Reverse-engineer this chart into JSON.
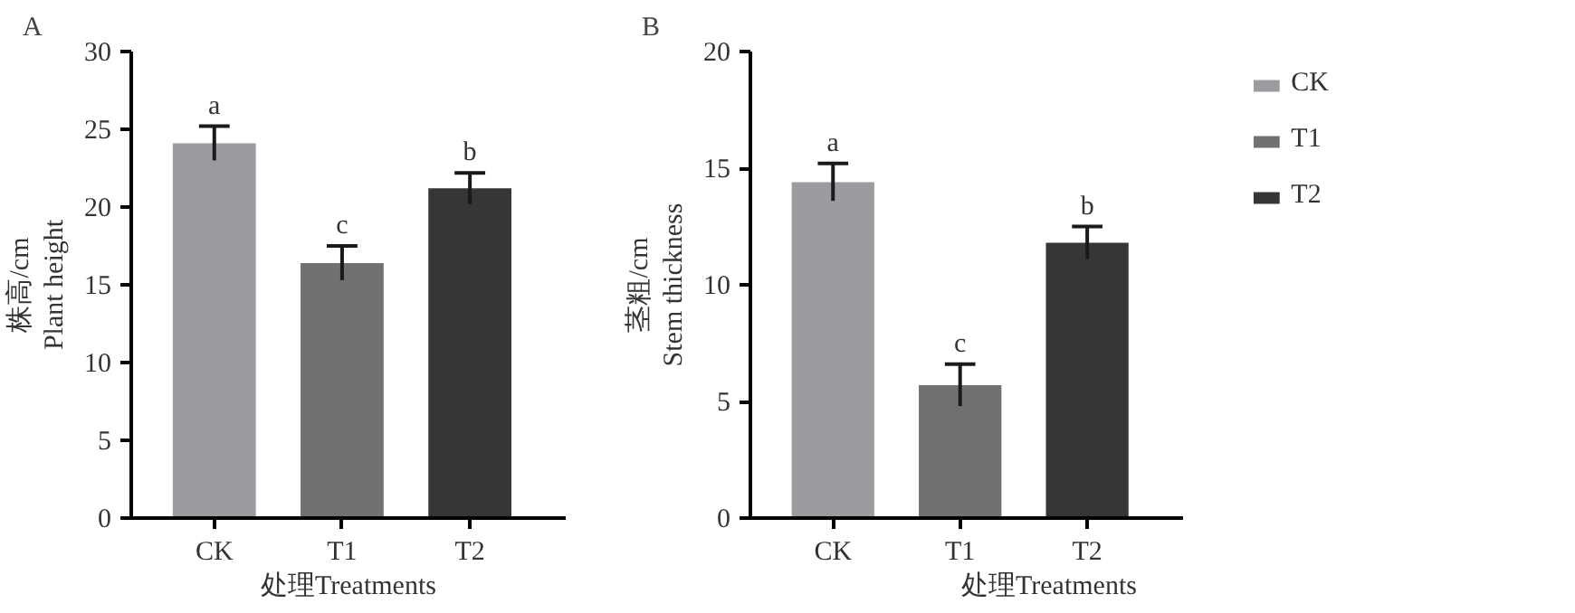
{
  "chart_data": [
    {
      "type": "bar",
      "title": "A",
      "xlabel": "处理Treatments",
      "ylabel": "株高/cm\nPlant height",
      "categories": [
        "CK",
        "T1",
        "T2"
      ],
      "values": [
        24.1,
        16.4,
        21.2
      ],
      "errors": [
        1.1,
        1.1,
        1.0
      ],
      "colors": [
        "#9a9ca0",
        "#717173",
        "#363537"
      ],
      "ylim": [
        0,
        30
      ],
      "yticks": [
        0,
        5,
        10,
        15,
        20,
        25,
        30
      ],
      "grid": false,
      "legend": false,
      "annotations": [
        {
          "text": "a",
          "x": "CK",
          "y": 25.2
        },
        {
          "text": "c",
          "x": "T1",
          "y": 17.5
        },
        {
          "text": "b",
          "x": "T2",
          "y": 22.2
        }
      ]
    },
    {
      "type": "bar",
      "title": "B",
      "xlabel": "处理Treatments",
      "ylabel": "茎粗/cm\nStem thickness",
      "categories": [
        "CK",
        "T1",
        "T2"
      ],
      "series": [
        {
          "name": "CK",
          "color": "#9a9ca0",
          "values": [
            14.4,
            null,
            null
          ],
          "errors": [
            0.8,
            null,
            null
          ]
        },
        {
          "name": "T1",
          "color": "#717173",
          "values": [
            null,
            5.7,
            null
          ],
          "errors": [
            null,
            0.9,
            null
          ]
        },
        {
          "name": "T2",
          "color": "#363537",
          "values": [
            null,
            null,
            11.8
          ],
          "errors": [
            null,
            null,
            0.7
          ]
        }
      ],
      "ylim": [
        0,
        20
      ],
      "yticks": [
        0,
        5,
        10,
        15,
        20
      ],
      "grid": false,
      "legend": "right",
      "annotations": [
        {
          "text": "a",
          "x": "CK",
          "y": 15.2
        },
        {
          "text": "c",
          "x": "T1",
          "y": 6.6
        },
        {
          "text": "b",
          "x": "T2",
          "y": 12.5
        }
      ]
    }
  ]
}
